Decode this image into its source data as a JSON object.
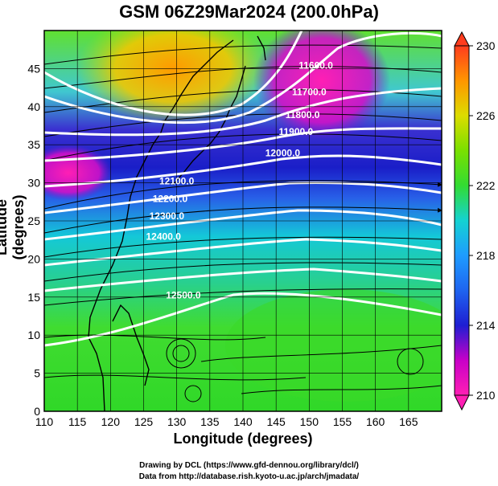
{
  "title": "GSM 06Z29Mar2024 (200.0hPa)",
  "xlabel": "Longitude (degrees)",
  "ylabel": "Latitude  (degrees)",
  "credits": [
    "Drawing by DCL (https://www.gfd-dennou.org/library/dcl/)",
    "Data from http://database.rish.kyoto-u.ac.jp/arch/jmadata/"
  ],
  "map": {
    "lon_range": [
      110,
      170
    ],
    "lat_range": [
      0,
      50
    ],
    "x_ticks": [
      "110",
      "115",
      "120",
      "125",
      "130",
      "135",
      "140",
      "145",
      "150",
      "155",
      "160",
      "165"
    ],
    "y_ticks": [
      "0",
      "5",
      "10",
      "15",
      "20",
      "25",
      "30",
      "35",
      "40",
      "45"
    ],
    "colorbar": {
      "min": 210,
      "max": 230,
      "tick_labels": [
        "210",
        "214",
        "218",
        "222",
        "226",
        "230"
      ],
      "colors": [
        "#ff1fb4",
        "#c800c8",
        "#1e1ed2",
        "#1e78ff",
        "#14d2d2",
        "#32dc32",
        "#7ae000",
        "#dcdc00",
        "#ff9600",
        "#ff3c1e"
      ]
    },
    "contour_labels": [
      {
        "text": "11600.0",
        "lon": 151,
        "lat": 45
      },
      {
        "text": "11700.0",
        "lon": 150,
        "lat": 41.5
      },
      {
        "text": "11800.0",
        "lon": 149,
        "lat": 38.5
      },
      {
        "text": "11900.0",
        "lon": 148,
        "lat": 36.3
      },
      {
        "text": "12000.0",
        "lon": 146,
        "lat": 33.5
      },
      {
        "text": "12100.0",
        "lon": 130,
        "lat": 29.8
      },
      {
        "text": "12200.0",
        "lon": 129,
        "lat": 27.5
      },
      {
        "text": "12300.0",
        "lon": 128.5,
        "lat": 25.2
      },
      {
        "text": "12400.0",
        "lon": 128,
        "lat": 22.5
      },
      {
        "text": "12500.0",
        "lon": 131,
        "lat": 14.8
      }
    ]
  }
}
